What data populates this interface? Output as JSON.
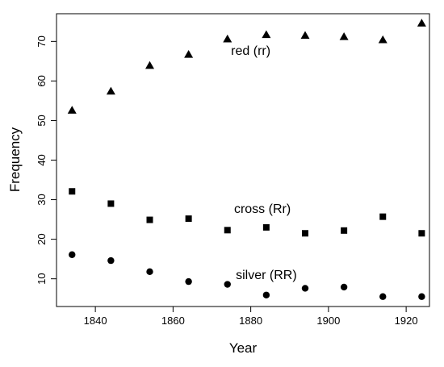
{
  "chart_data": {
    "type": "scatter",
    "title": "",
    "xlabel": "Year",
    "ylabel": "Frequency",
    "xlim": [
      1830,
      1926
    ],
    "ylim": [
      3,
      77
    ],
    "xticks": [
      1840,
      1860,
      1880,
      1900,
      1920
    ],
    "yticks": [
      10,
      20,
      30,
      40,
      50,
      60,
      70
    ],
    "grid": false,
    "legend": "none",
    "x": [
      1834,
      1844,
      1854,
      1864,
      1874,
      1884,
      1894,
      1904,
      1914,
      1924
    ],
    "series": [
      {
        "label": "red (rr)",
        "marker": "triangle",
        "values": [
          52.6,
          57.4,
          63.9,
          66.7,
          70.6,
          71.7,
          71.5,
          71.2,
          70.4,
          74.6
        ]
      },
      {
        "label": "cross (Rr)",
        "marker": "square",
        "values": [
          32.1,
          29.0,
          24.9,
          25.2,
          22.3,
          23.0,
          21.5,
          22.2,
          25.7,
          21.5
        ]
      },
      {
        "label": "silver (RR)",
        "marker": "circle",
        "values": [
          16.1,
          14.6,
          11.8,
          9.3,
          8.6,
          5.9,
          7.6,
          7.9,
          5.5,
          5.5
        ]
      }
    ],
    "annotations": [
      {
        "text": "red (rr)",
        "x": 1880,
        "y": 67.5,
        "anchor": "middle"
      },
      {
        "text": "cross (Rr)",
        "x": 1883,
        "y": 27.5,
        "anchor": "middle"
      },
      {
        "text": "silver (RR)",
        "x": 1884,
        "y": 10.8,
        "anchor": "middle"
      }
    ]
  }
}
